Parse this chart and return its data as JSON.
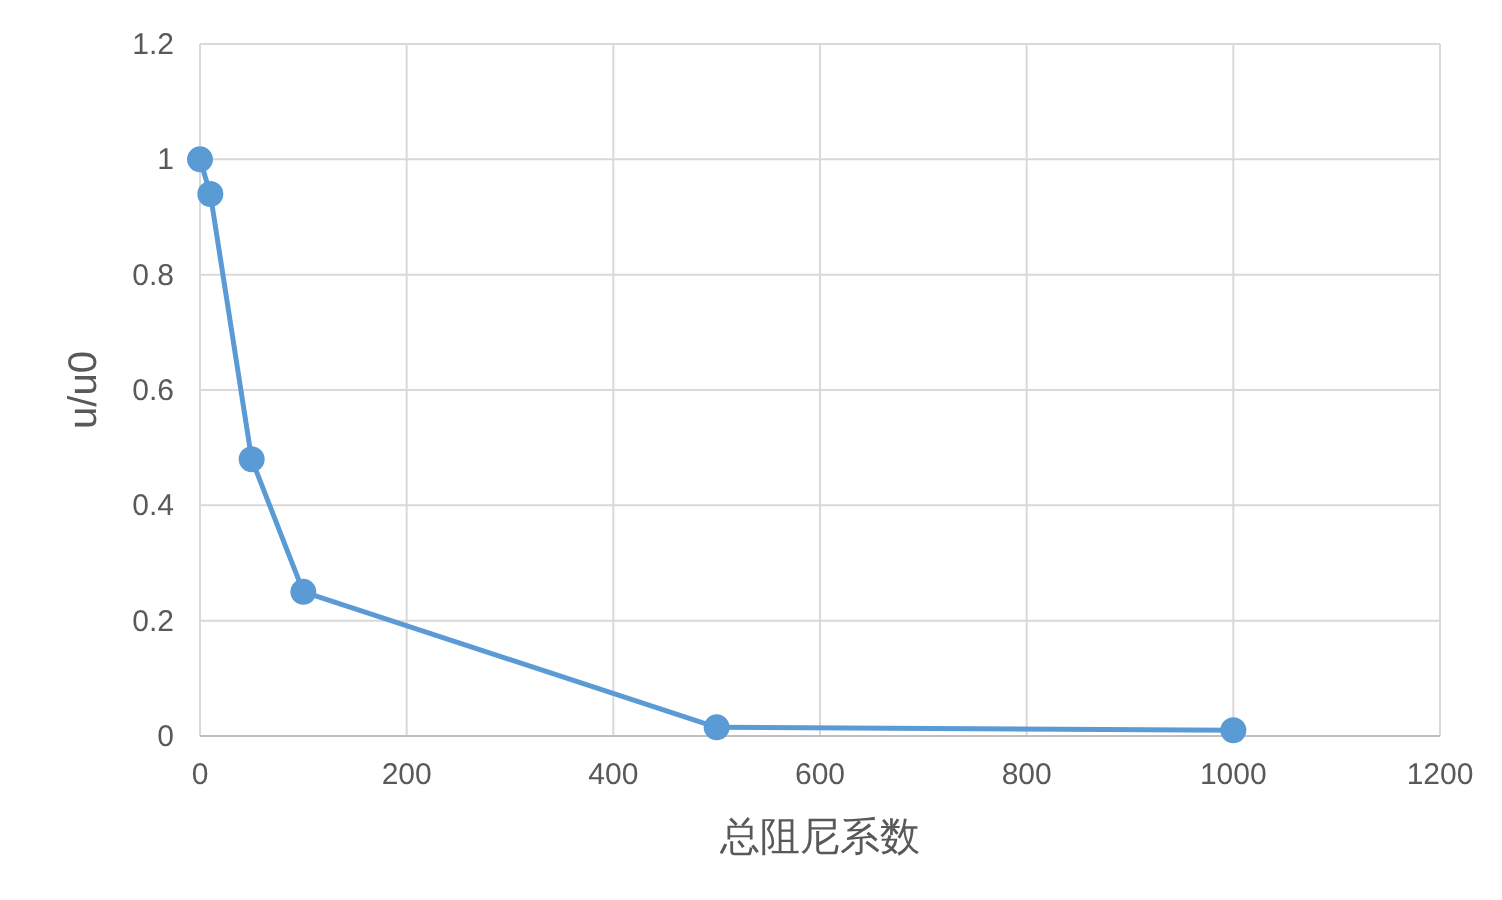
{
  "chart_data": {
    "type": "line",
    "xlabel": "总阻尼系数",
    "ylabel": "u/u0",
    "x": [
      0,
      10,
      50,
      100,
      500,
      1000
    ],
    "series": [
      {
        "color": "#5b9bd5",
        "values": [
          1.0,
          0.94,
          0.48,
          0.25,
          0.015,
          0.01
        ]
      }
    ],
    "xlim": [
      0,
      1200
    ],
    "xticks": [
      0,
      200,
      400,
      600,
      800,
      1000,
      1200
    ],
    "ylim": [
      0,
      1.2
    ],
    "yticks": [
      0,
      0.2,
      0.4,
      0.6,
      0.8,
      1,
      1.2
    ],
    "grid": true,
    "marker": "circle",
    "line_style": "solid"
  }
}
